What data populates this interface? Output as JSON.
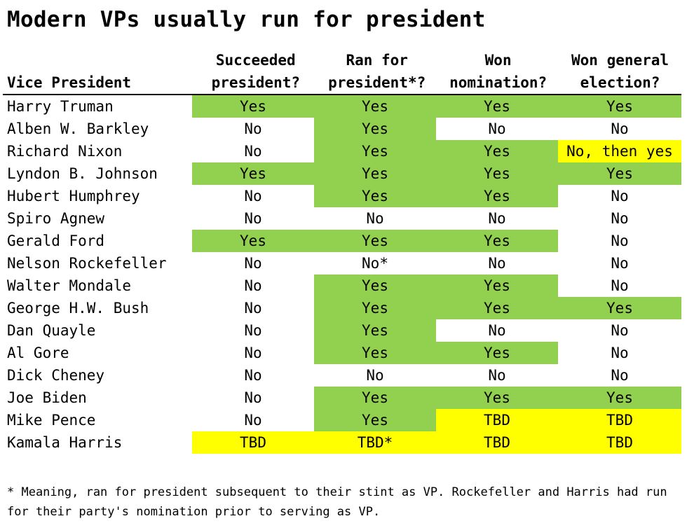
{
  "title": "Modern VPs usually run for president",
  "colors": {
    "green": "#92d050",
    "yellow": "#ffff00",
    "white": "#ffffff"
  },
  "headers": {
    "name": "Vice President",
    "c1": [
      "Succeeded",
      "president?"
    ],
    "c2": [
      "Ran for",
      "president*?"
    ],
    "c3": [
      "Won",
      "nomination?"
    ],
    "c4": [
      "Won general",
      "election?"
    ]
  },
  "rows": [
    {
      "name": "Harry Truman",
      "cells": [
        {
          "v": "Yes",
          "c": "green"
        },
        {
          "v": "Yes",
          "c": "green"
        },
        {
          "v": "Yes",
          "c": "green"
        },
        {
          "v": "Yes",
          "c": "green"
        }
      ]
    },
    {
      "name": "Alben W. Barkley",
      "cells": [
        {
          "v": "No",
          "c": "white"
        },
        {
          "v": "Yes",
          "c": "green"
        },
        {
          "v": "No",
          "c": "white"
        },
        {
          "v": "No",
          "c": "white"
        }
      ]
    },
    {
      "name": "Richard Nixon",
      "cells": [
        {
          "v": "No",
          "c": "white"
        },
        {
          "v": "Yes",
          "c": "green"
        },
        {
          "v": "Yes",
          "c": "green"
        },
        {
          "v": "No, then yes",
          "c": "yellow"
        }
      ]
    },
    {
      "name": "Lyndon B. Johnson",
      "cells": [
        {
          "v": "Yes",
          "c": "green"
        },
        {
          "v": "Yes",
          "c": "green"
        },
        {
          "v": "Yes",
          "c": "green"
        },
        {
          "v": "Yes",
          "c": "green"
        }
      ]
    },
    {
      "name": "Hubert Humphrey",
      "cells": [
        {
          "v": "No",
          "c": "white"
        },
        {
          "v": "Yes",
          "c": "green"
        },
        {
          "v": "Yes",
          "c": "green"
        },
        {
          "v": "No",
          "c": "white"
        }
      ]
    },
    {
      "name": "Spiro Agnew",
      "cells": [
        {
          "v": "No",
          "c": "white"
        },
        {
          "v": "No",
          "c": "white"
        },
        {
          "v": "No",
          "c": "white"
        },
        {
          "v": "No",
          "c": "white"
        }
      ]
    },
    {
      "name": "Gerald Ford",
      "cells": [
        {
          "v": "Yes",
          "c": "green"
        },
        {
          "v": "Yes",
          "c": "green"
        },
        {
          "v": "Yes",
          "c": "green"
        },
        {
          "v": "No",
          "c": "white"
        }
      ]
    },
    {
      "name": "Nelson Rockefeller",
      "cells": [
        {
          "v": "No",
          "c": "white"
        },
        {
          "v": "No*",
          "c": "white"
        },
        {
          "v": "No",
          "c": "white"
        },
        {
          "v": "No",
          "c": "white"
        }
      ]
    },
    {
      "name": "Walter Mondale",
      "cells": [
        {
          "v": "No",
          "c": "white"
        },
        {
          "v": "Yes",
          "c": "green"
        },
        {
          "v": "Yes",
          "c": "green"
        },
        {
          "v": "No",
          "c": "white"
        }
      ]
    },
    {
      "name": "George H.W. Bush",
      "cells": [
        {
          "v": "No",
          "c": "white"
        },
        {
          "v": "Yes",
          "c": "green"
        },
        {
          "v": "Yes",
          "c": "green"
        },
        {
          "v": "Yes",
          "c": "green"
        }
      ]
    },
    {
      "name": "Dan Quayle",
      "cells": [
        {
          "v": "No",
          "c": "white"
        },
        {
          "v": "Yes",
          "c": "green"
        },
        {
          "v": "No",
          "c": "white"
        },
        {
          "v": "No",
          "c": "white"
        }
      ]
    },
    {
      "name": "Al Gore",
      "cells": [
        {
          "v": "No",
          "c": "white"
        },
        {
          "v": "Yes",
          "c": "green"
        },
        {
          "v": "Yes",
          "c": "green"
        },
        {
          "v": "No",
          "c": "white"
        }
      ]
    },
    {
      "name": "Dick Cheney",
      "cells": [
        {
          "v": "No",
          "c": "white"
        },
        {
          "v": "No",
          "c": "white"
        },
        {
          "v": "No",
          "c": "white"
        },
        {
          "v": "No",
          "c": "white"
        }
      ]
    },
    {
      "name": "Joe Biden",
      "cells": [
        {
          "v": "No",
          "c": "white"
        },
        {
          "v": "Yes",
          "c": "green"
        },
        {
          "v": "Yes",
          "c": "green"
        },
        {
          "v": "Yes",
          "c": "green"
        }
      ]
    },
    {
      "name": "Mike Pence",
      "cells": [
        {
          "v": "No",
          "c": "white"
        },
        {
          "v": "Yes",
          "c": "green"
        },
        {
          "v": "TBD",
          "c": "yellow"
        },
        {
          "v": "TBD",
          "c": "yellow"
        }
      ]
    },
    {
      "name": "Kamala Harris",
      "cells": [
        {
          "v": "TBD",
          "c": "yellow"
        },
        {
          "v": "TBD*",
          "c": "yellow"
        },
        {
          "v": "TBD",
          "c": "yellow"
        },
        {
          "v": "TBD",
          "c": "yellow"
        }
      ]
    }
  ],
  "footnote": [
    "* Meaning, ran for president subsequent to their stint as VP. Rockefeller and Harris had run",
    "for their party's nomination prior to serving as VP."
  ]
}
